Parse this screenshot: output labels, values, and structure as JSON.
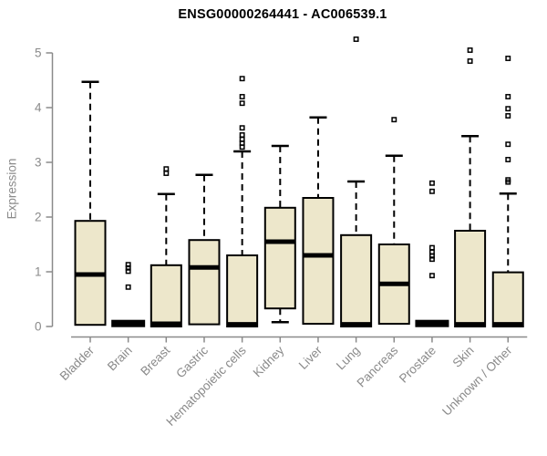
{
  "chart_data": {
    "type": "boxplot",
    "title": "ENSG00000264441 - AC006539.1",
    "ylabel": "Expression",
    "xlabel": "",
    "ylim": [
      0,
      5
    ],
    "yticks": [
      0,
      1,
      2,
      3,
      4,
      5
    ],
    "grid": false,
    "legend": "none",
    "categories": [
      "Bladder",
      "Brain",
      "Breast",
      "Gastric",
      "Hematopoietic cells",
      "Kidney",
      "Liver",
      "Lung",
      "Pancreas",
      "Prostate",
      "Skin",
      "Unknown / Other"
    ],
    "boxes": [
      {
        "category": "Bladder",
        "collapsed": false,
        "low": 0.03,
        "q1": 0.03,
        "median": 0.95,
        "q3": 1.93,
        "high": 4.47,
        "outliers": []
      },
      {
        "category": "Brain",
        "collapsed": true,
        "low": 0.03,
        "q1": 0.03,
        "median": 0.03,
        "q3": 0.03,
        "high": 0.03,
        "outliers": [
          1.13,
          1.07,
          1.01,
          0.72
        ]
      },
      {
        "category": "Breast",
        "collapsed": false,
        "low": 0,
        "q1": 0,
        "median": 0.05,
        "q3": 1.12,
        "high": 2.42,
        "outliers": [
          2.88,
          2.8
        ]
      },
      {
        "category": "Gastric",
        "collapsed": false,
        "low": 0.04,
        "q1": 0.04,
        "median": 1.08,
        "q3": 1.58,
        "high": 2.77,
        "outliers": []
      },
      {
        "category": "Hematopoietic cells",
        "collapsed": false,
        "low": 0,
        "q1": 0,
        "median": 0.04,
        "q3": 1.3,
        "high": 3.2,
        "outliers": [
          4.53,
          4.2,
          4.08,
          3.63,
          3.5,
          3.42,
          3.35,
          3.28
        ]
      },
      {
        "category": "Kidney",
        "collapsed": false,
        "low": 0.08,
        "q1": 0.33,
        "median": 1.55,
        "q3": 2.17,
        "high": 3.3,
        "outliers": []
      },
      {
        "category": "Liver",
        "collapsed": false,
        "low": 0.05,
        "q1": 0.05,
        "median": 1.3,
        "q3": 2.35,
        "high": 3.82,
        "outliers": []
      },
      {
        "category": "Lung",
        "collapsed": false,
        "low": 0,
        "q1": 0,
        "median": 0.04,
        "q3": 1.67,
        "high": 2.65,
        "outliers": [
          5.25
        ]
      },
      {
        "category": "Pancreas",
        "collapsed": false,
        "low": 0.05,
        "q1": 0.05,
        "median": 0.78,
        "q3": 1.5,
        "high": 3.12,
        "outliers": [
          3.78
        ]
      },
      {
        "category": "Prostate",
        "collapsed": true,
        "low": 0.03,
        "q1": 0.03,
        "median": 0.03,
        "q3": 0.03,
        "high": 0.03,
        "outliers": [
          2.62,
          2.47,
          1.44,
          1.36,
          1.29,
          1.23,
          0.93
        ]
      },
      {
        "category": "Skin",
        "collapsed": false,
        "low": 0,
        "q1": 0,
        "median": 0.04,
        "q3": 1.75,
        "high": 3.48,
        "outliers": [
          5.05,
          4.85
        ]
      },
      {
        "category": "Unknown / Other",
        "collapsed": false,
        "low": 0,
        "q1": 0,
        "median": 0.04,
        "q3": 0.99,
        "high": 2.43,
        "outliers": [
          4.9,
          4.2,
          3.98,
          3.85,
          3.33,
          3.05,
          2.68,
          2.64
        ]
      }
    ],
    "colors": {
      "box_fill": "#EDE7CB",
      "box_border": "#000000",
      "median": "#000000",
      "whisker": "#000000",
      "outlier": "#000000",
      "axis": "#8A8A8A",
      "axis_text": "#8A8A8A",
      "title_text": "#000000",
      "background": "#FFFFFF"
    }
  }
}
